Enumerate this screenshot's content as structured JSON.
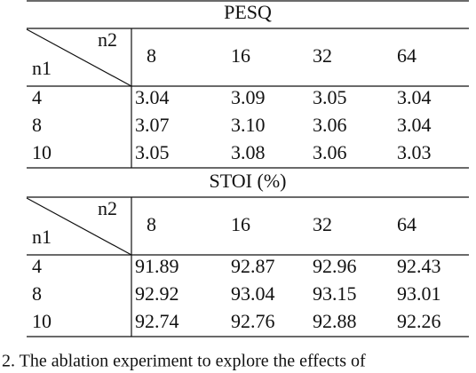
{
  "sections": [
    {
      "title": "PESQ",
      "col_header": "n2",
      "row_header": "n1",
      "columns": [
        "8",
        "16",
        "32",
        "64"
      ],
      "rows": [
        {
          "label": "4",
          "values": [
            "3.04",
            "3.09",
            "3.05",
            "3.04"
          ]
        },
        {
          "label": "8",
          "values": [
            "3.07",
            "3.10",
            "3.06",
            "3.04"
          ]
        },
        {
          "label": "10",
          "values": [
            "3.05",
            "3.08",
            "3.06",
            "3.03"
          ]
        }
      ]
    },
    {
      "title": "STOI (%)",
      "col_header": "n2",
      "row_header": "n1",
      "columns": [
        "8",
        "16",
        "32",
        "64"
      ],
      "rows": [
        {
          "label": "4",
          "values": [
            "91.89",
            "92.87",
            "92.96",
            "92.43"
          ]
        },
        {
          "label": "8",
          "values": [
            "92.92",
            "93.04",
            "93.15",
            "93.01"
          ]
        },
        {
          "label": "10",
          "values": [
            "92.74",
            "92.76",
            "92.88",
            "92.26"
          ]
        }
      ]
    }
  ],
  "caption": "2.  The ablation experiment to explore the effects of"
}
